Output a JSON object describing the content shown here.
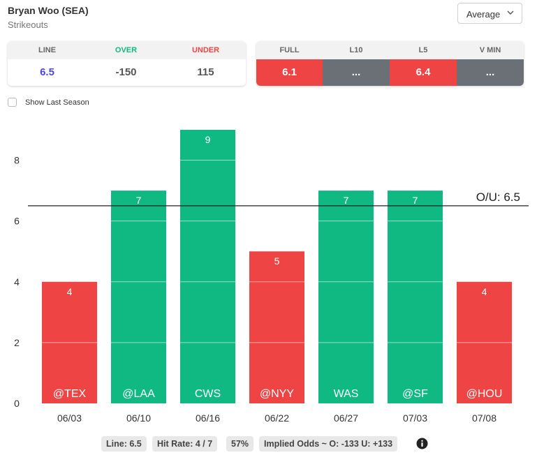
{
  "header": {
    "player": "Bryan Woo (SEA)",
    "market": "Strikeouts",
    "select_value": "Average"
  },
  "odds": {
    "headers": {
      "line": "LINE",
      "over": "OVER",
      "under": "UNDER"
    },
    "values": {
      "line": "6.5",
      "over": "-150",
      "under": "115"
    }
  },
  "stats": {
    "headers": [
      "FULL",
      "L10",
      "L5",
      "V MIN"
    ],
    "values": [
      "6.1",
      "...",
      "6.4",
      "..."
    ]
  },
  "show_last_season_label": "Show Last Season",
  "colors": {
    "over": "#10b981",
    "under": "#ef4444",
    "line_value": "#4f46e5",
    "na": "#6b6f76"
  },
  "chart_data": {
    "type": "bar",
    "categories": [
      "06/03",
      "06/10",
      "06/16",
      "06/22",
      "06/27",
      "07/03",
      "07/08"
    ],
    "opponents": [
      "@TEX",
      "@LAA",
      "CWS",
      "@NYY",
      "WAS",
      "@SF",
      "@HOU"
    ],
    "values": [
      4,
      7,
      9,
      5,
      7,
      7,
      4
    ],
    "y_ticks": [
      0,
      2,
      4,
      6,
      8
    ],
    "ylim": [
      0,
      9
    ],
    "line": 6.5,
    "line_label": "O/U: 6.5",
    "grid": true
  },
  "footer": {
    "line": "Line: 6.5",
    "hit_rate": "Hit Rate: 4 / 7",
    "hit_pct": "57%",
    "implied": "Implied Odds ~ O: -133 U: +133"
  }
}
